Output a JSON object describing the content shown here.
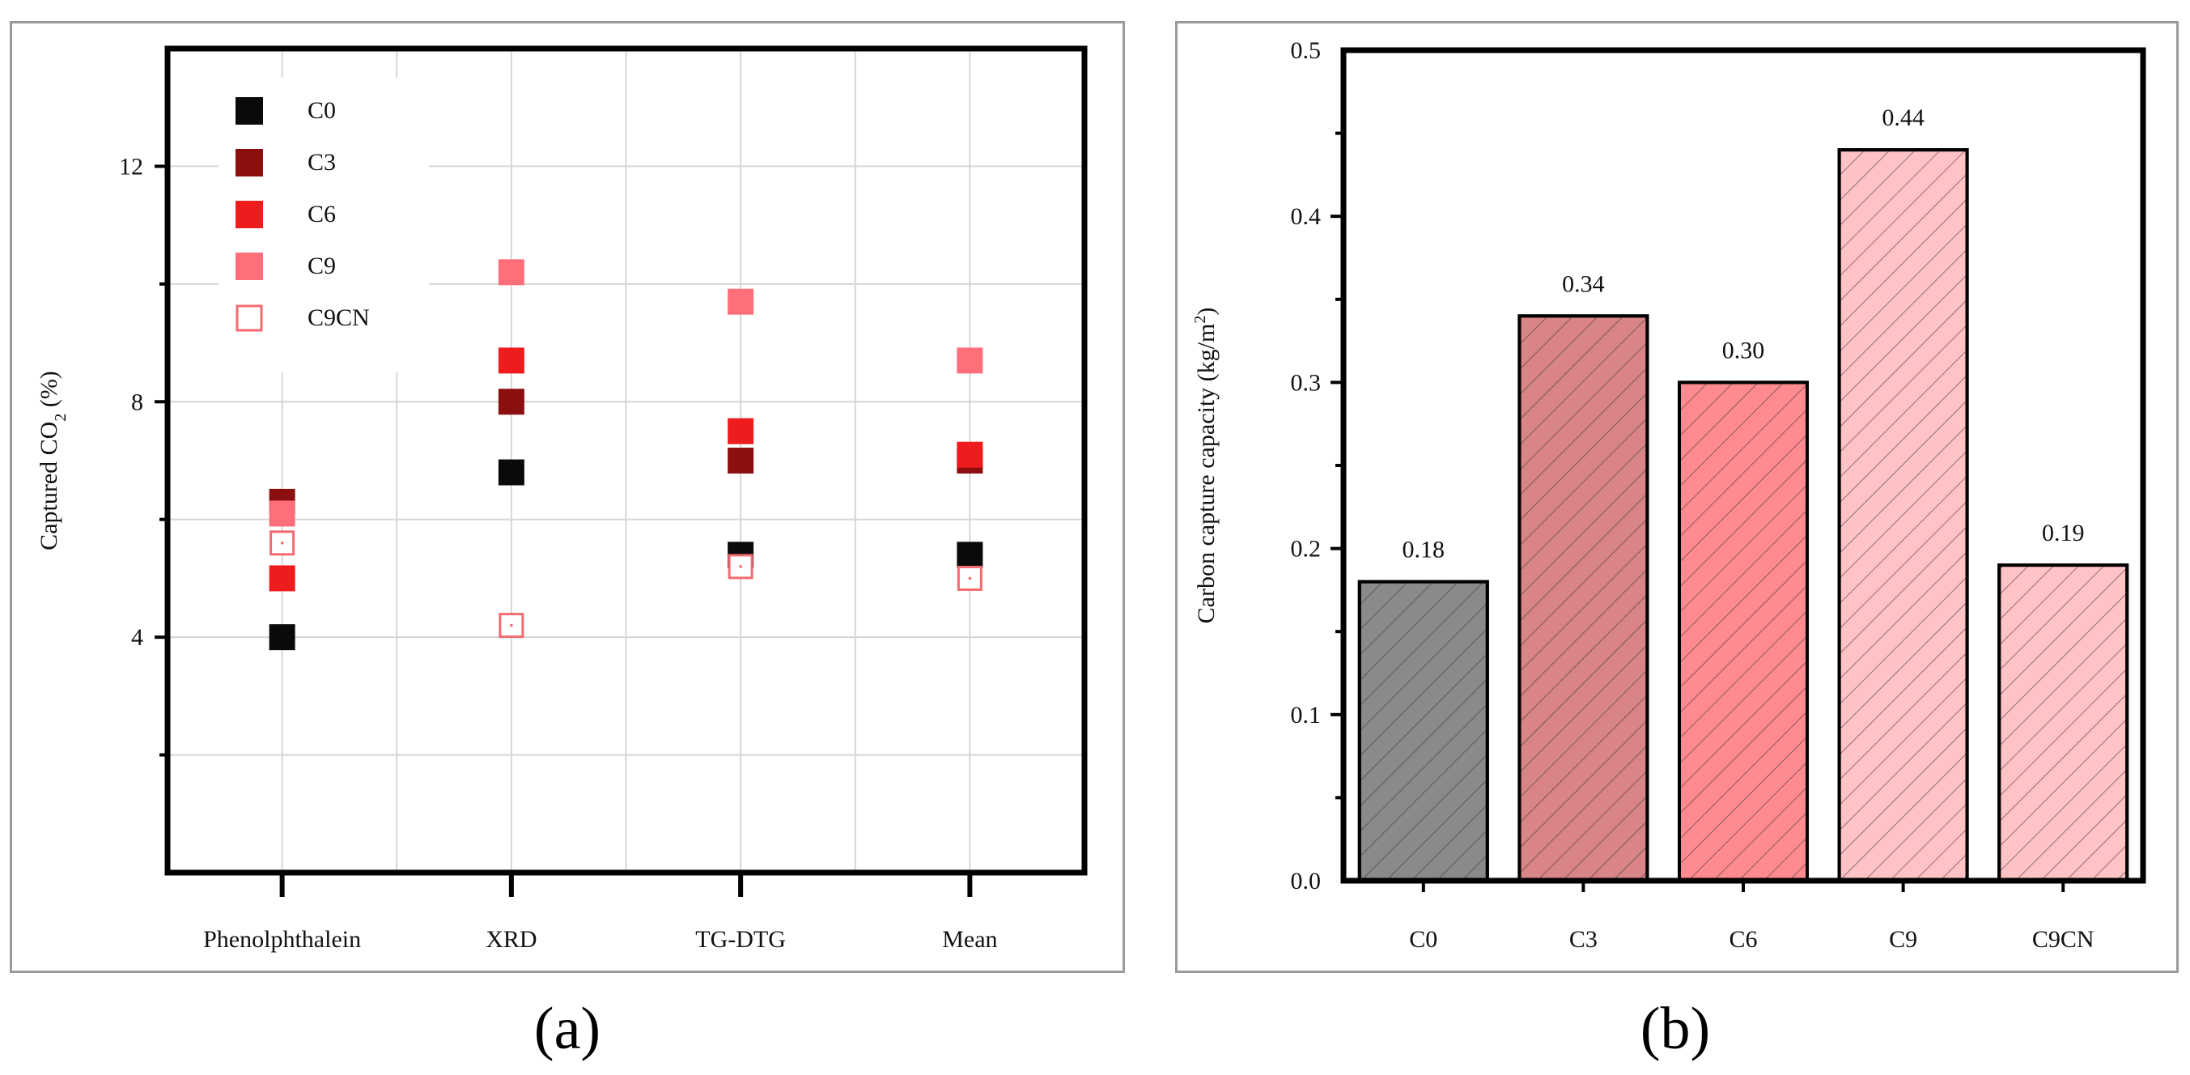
{
  "chart_data": [
    {
      "type": "scatter",
      "panel_label": "(a)",
      "ylabel": "Captured CO",
      "ylabel_sub": "2",
      "ylabel_suffix": " (%)",
      "ylim": [
        0,
        14
      ],
      "yticks": [
        4,
        8,
        12
      ],
      "categories": [
        "Phenolphthalein",
        "XRD",
        "TG-DTG",
        "Mean"
      ],
      "grid": true,
      "legend_position": "top-left",
      "series": [
        {
          "name": "C0",
          "color": "#0a0a0a",
          "marker": "filled-square",
          "values": [
            4.0,
            6.8,
            5.4,
            5.4
          ]
        },
        {
          "name": "C3",
          "color": "#8b0f0f",
          "marker": "filled-square",
          "values": [
            6.3,
            8.0,
            7.0,
            7.0
          ]
        },
        {
          "name": "C6",
          "color": "#ee1c1c",
          "marker": "filled-square",
          "values": [
            5.0,
            8.7,
            7.5,
            7.1
          ]
        },
        {
          "name": "C9",
          "color": "#ff6f7a",
          "marker": "filled-square",
          "values": [
            6.1,
            10.2,
            9.7,
            8.7
          ]
        },
        {
          "name": "C9CN",
          "color": "#f26a72",
          "marker": "open-square",
          "values": [
            5.6,
            4.2,
            5.2,
            5.0
          ]
        }
      ]
    },
    {
      "type": "bar",
      "panel_label": "(b)",
      "ylabel": "Carbon capture capacity (kg/m",
      "ylabel_sup": "2",
      "ylabel_suffix": ")",
      "ylim": [
        0,
        0.5
      ],
      "yticks": [
        "0.0",
        "0.1",
        "0.2",
        "0.3",
        "0.4",
        "0.5"
      ],
      "categories": [
        "C0",
        "C3",
        "C6",
        "C9",
        "C9CN"
      ],
      "values": [
        0.18,
        0.34,
        0.3,
        0.44,
        0.19
      ],
      "data_labels": [
        "0.18",
        "0.34",
        "0.30",
        "0.44",
        "0.19"
      ],
      "colors": [
        "#8a8a8a",
        "#d98487",
        "#ff8a8f",
        "#ffc2c5",
        "#ffc2c5"
      ],
      "pattern": "diagonal-hatch"
    }
  ]
}
